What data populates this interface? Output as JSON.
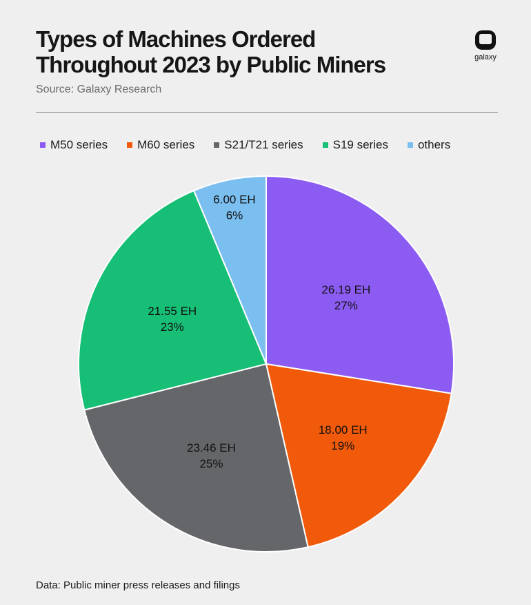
{
  "header": {
    "title": "Types of Machines Ordered Throughout 2023 by Public Miners",
    "source": "Source: Galaxy Research",
    "logo_text": "galaxy"
  },
  "footnote": "Data: Public miner press releases and filings",
  "colors": {
    "m50": "#8c5cf2",
    "m60": "#f05a0a",
    "s21": "#65666a",
    "s19": "#16bf75",
    "others": "#7bbff0"
  },
  "chart_data": {
    "type": "pie",
    "title": "Types of Machines Ordered Throughout 2023 by Public Miners",
    "legend_position": "top",
    "start_angle_deg": 0,
    "direction": "clockwise",
    "slices": [
      {
        "label": "M50 series",
        "value": 26.19,
        "value_label": "26.19 EH",
        "percent_label": "27%",
        "color": "#8c5cf2"
      },
      {
        "label": "M60 series",
        "value": 18.0,
        "value_label": "18.00 EH",
        "percent_label": "19%",
        "color": "#f05a0a"
      },
      {
        "label": "S21/T21 series",
        "value": 23.46,
        "value_label": "23.46 EH",
        "percent_label": "25%",
        "color": "#65666a"
      },
      {
        "label": "S19 series",
        "value": 21.55,
        "value_label": "21.55 EH",
        "percent_label": "23%",
        "color": "#16bf75"
      },
      {
        "label": "others",
        "value": 6.0,
        "value_label": "6.00 EH",
        "percent_label": "6%",
        "color": "#7bbff0"
      }
    ]
  }
}
